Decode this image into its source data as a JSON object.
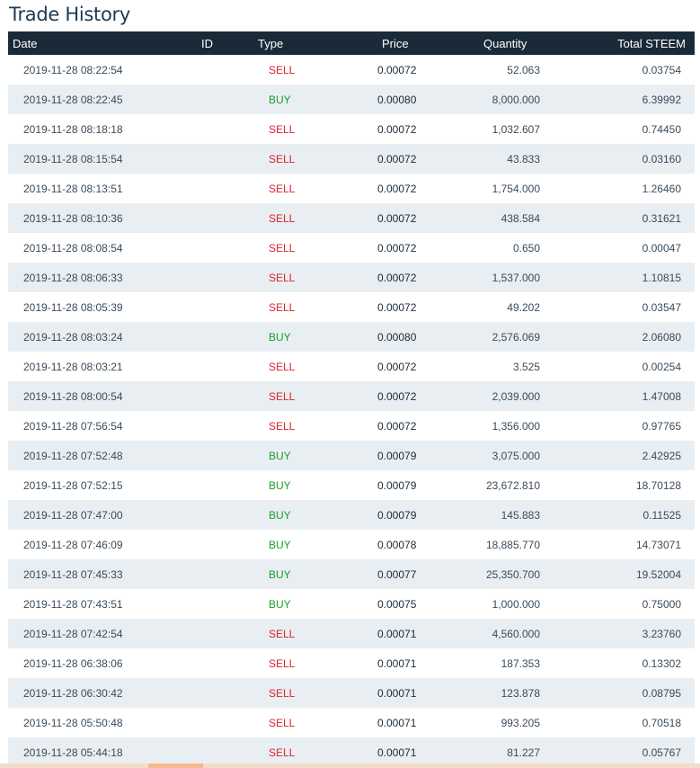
{
  "title": "Trade History",
  "columns": {
    "date": "Date",
    "id": "ID",
    "type": "Type",
    "price": "Price",
    "quantity": "Quantity",
    "total": "Total STEEM"
  },
  "rows": [
    {
      "date": "2019-11-28 08:22:54",
      "type": "SELL",
      "price": "0.00072",
      "quantity": "52.063",
      "total": "0.03754"
    },
    {
      "date": "2019-11-28 08:22:45",
      "type": "BUY",
      "price": "0.00080",
      "quantity": "8,000.000",
      "total": "6.39992"
    },
    {
      "date": "2019-11-28 08:18:18",
      "type": "SELL",
      "price": "0.00072",
      "quantity": "1,032.607",
      "total": "0.74450"
    },
    {
      "date": "2019-11-28 08:15:54",
      "type": "SELL",
      "price": "0.00072",
      "quantity": "43.833",
      "total": "0.03160"
    },
    {
      "date": "2019-11-28 08:13:51",
      "type": "SELL",
      "price": "0.00072",
      "quantity": "1,754.000",
      "total": "1.26460"
    },
    {
      "date": "2019-11-28 08:10:36",
      "type": "SELL",
      "price": "0.00072",
      "quantity": "438.584",
      "total": "0.31621"
    },
    {
      "date": "2019-11-28 08:08:54",
      "type": "SELL",
      "price": "0.00072",
      "quantity": "0.650",
      "total": "0.00047"
    },
    {
      "date": "2019-11-28 08:06:33",
      "type": "SELL",
      "price": "0.00072",
      "quantity": "1,537.000",
      "total": "1.10815"
    },
    {
      "date": "2019-11-28 08:05:39",
      "type": "SELL",
      "price": "0.00072",
      "quantity": "49.202",
      "total": "0.03547"
    },
    {
      "date": "2019-11-28 08:03:24",
      "type": "BUY",
      "price": "0.00080",
      "quantity": "2,576.069",
      "total": "2.06080"
    },
    {
      "date": "2019-11-28 08:03:21",
      "type": "SELL",
      "price": "0.00072",
      "quantity": "3.525",
      "total": "0.00254"
    },
    {
      "date": "2019-11-28 08:00:54",
      "type": "SELL",
      "price": "0.00072",
      "quantity": "2,039.000",
      "total": "1.47008"
    },
    {
      "date": "2019-11-28 07:56:54",
      "type": "SELL",
      "price": "0.00072",
      "quantity": "1,356.000",
      "total": "0.97765"
    },
    {
      "date": "2019-11-28 07:52:48",
      "type": "BUY",
      "price": "0.00079",
      "quantity": "3,075.000",
      "total": "2.42925"
    },
    {
      "date": "2019-11-28 07:52:15",
      "type": "BUY",
      "price": "0.00079",
      "quantity": "23,672.810",
      "total": "18.70128"
    },
    {
      "date": "2019-11-28 07:47:00",
      "type": "BUY",
      "price": "0.00079",
      "quantity": "145.883",
      "total": "0.11525"
    },
    {
      "date": "2019-11-28 07:46:09",
      "type": "BUY",
      "price": "0.00078",
      "quantity": "18,885.770",
      "total": "14.73071"
    },
    {
      "date": "2019-11-28 07:45:33",
      "type": "BUY",
      "price": "0.00077",
      "quantity": "25,350.700",
      "total": "19.52004"
    },
    {
      "date": "2019-11-28 07:43:51",
      "type": "BUY",
      "price": "0.00075",
      "quantity": "1,000.000",
      "total": "0.75000"
    },
    {
      "date": "2019-11-28 07:42:54",
      "type": "SELL",
      "price": "0.00071",
      "quantity": "4,560.000",
      "total": "3.23760"
    },
    {
      "date": "2019-11-28 06:38:06",
      "type": "SELL",
      "price": "0.00071",
      "quantity": "187.353",
      "total": "0.13302"
    },
    {
      "date": "2019-11-28 06:30:42",
      "type": "SELL",
      "price": "0.00071",
      "quantity": "123.878",
      "total": "0.08795"
    },
    {
      "date": "2019-11-28 05:50:48",
      "type": "SELL",
      "price": "0.00071",
      "quantity": "993.205",
      "total": "0.70518"
    },
    {
      "date": "2019-11-28 05:44:18",
      "type": "SELL",
      "price": "0.00071",
      "quantity": "81.227",
      "total": "0.05767"
    }
  ],
  "colors": {
    "header_bg": "#1b2a38",
    "sell": "#d9242e",
    "buy": "#16a02a",
    "stripe": "#e9eef2"
  }
}
